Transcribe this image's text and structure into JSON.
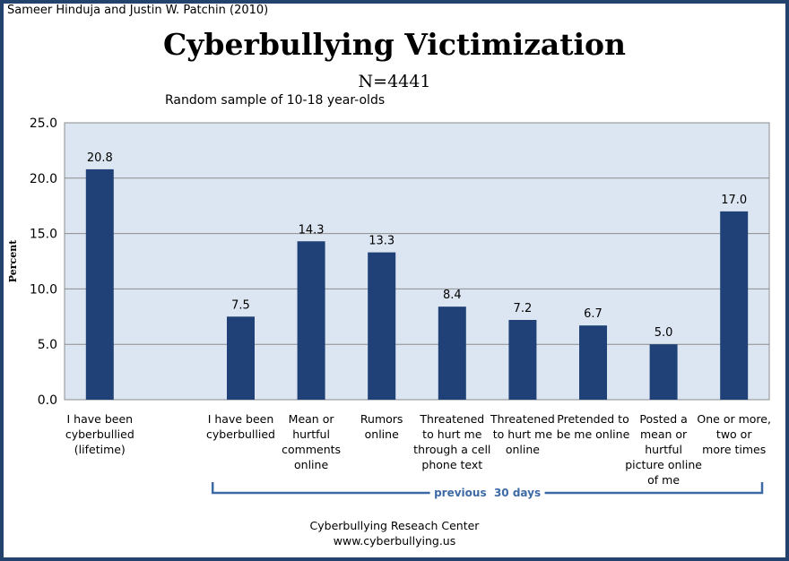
{
  "credit": "Sameer Hinduja and Justin W. Patchin (2010)",
  "title": "Cyberbullying Victimization",
  "n_label": "N=4441",
  "subtitle": "Random sample of 10-18 year-olds",
  "footer": {
    "line1": "Cyberbullying Reseach Center",
    "line2": "www.cyberbullying.us"
  },
  "colors": {
    "bar": "#1f4177",
    "plot_bg": "#dce6f2",
    "bracket": "#3d6aa5",
    "frame": "#24426e"
  },
  "chart_data": {
    "type": "bar",
    "title": "Cyberbullying Victimization",
    "subtitle": "Random sample of 10-18 year-olds",
    "xlabel": "",
    "ylabel": "Percent",
    "ylim": [
      0,
      25
    ],
    "yticks": [
      "0.0",
      "5.0",
      "10.0",
      "15.0",
      "20.0",
      "25.0"
    ],
    "grid": true,
    "categories": [
      [
        "I have been",
        "cyberbullied",
        "(lifetime)"
      ],
      [],
      [
        "I have been",
        "cyberbullied"
      ],
      [
        "Mean or",
        "hurtful",
        "comments",
        "online"
      ],
      [
        "Rumors",
        "online"
      ],
      [
        "Threatened",
        "to hurt me",
        "through a cell",
        "phone text"
      ],
      [
        "Threatened",
        "to hurt me",
        "online"
      ],
      [
        "Pretended to",
        "be me online"
      ],
      [
        "Posted a",
        "mean or",
        "hurtful",
        "picture online",
        "of me"
      ],
      [
        "One or more,",
        "two or",
        "more times"
      ]
    ],
    "values": [
      20.8,
      null,
      7.5,
      14.3,
      13.3,
      8.4,
      7.2,
      6.7,
      5.0,
      17.0
    ],
    "data_labels": [
      "20.8",
      "",
      "7.5",
      "14.3",
      "13.3",
      "8.4",
      "7.2",
      "6.7",
      "5.0",
      "17.0"
    ],
    "group_bracket": {
      "label": "previous  30 days",
      "from_category": 2,
      "to_category": 9
    }
  }
}
